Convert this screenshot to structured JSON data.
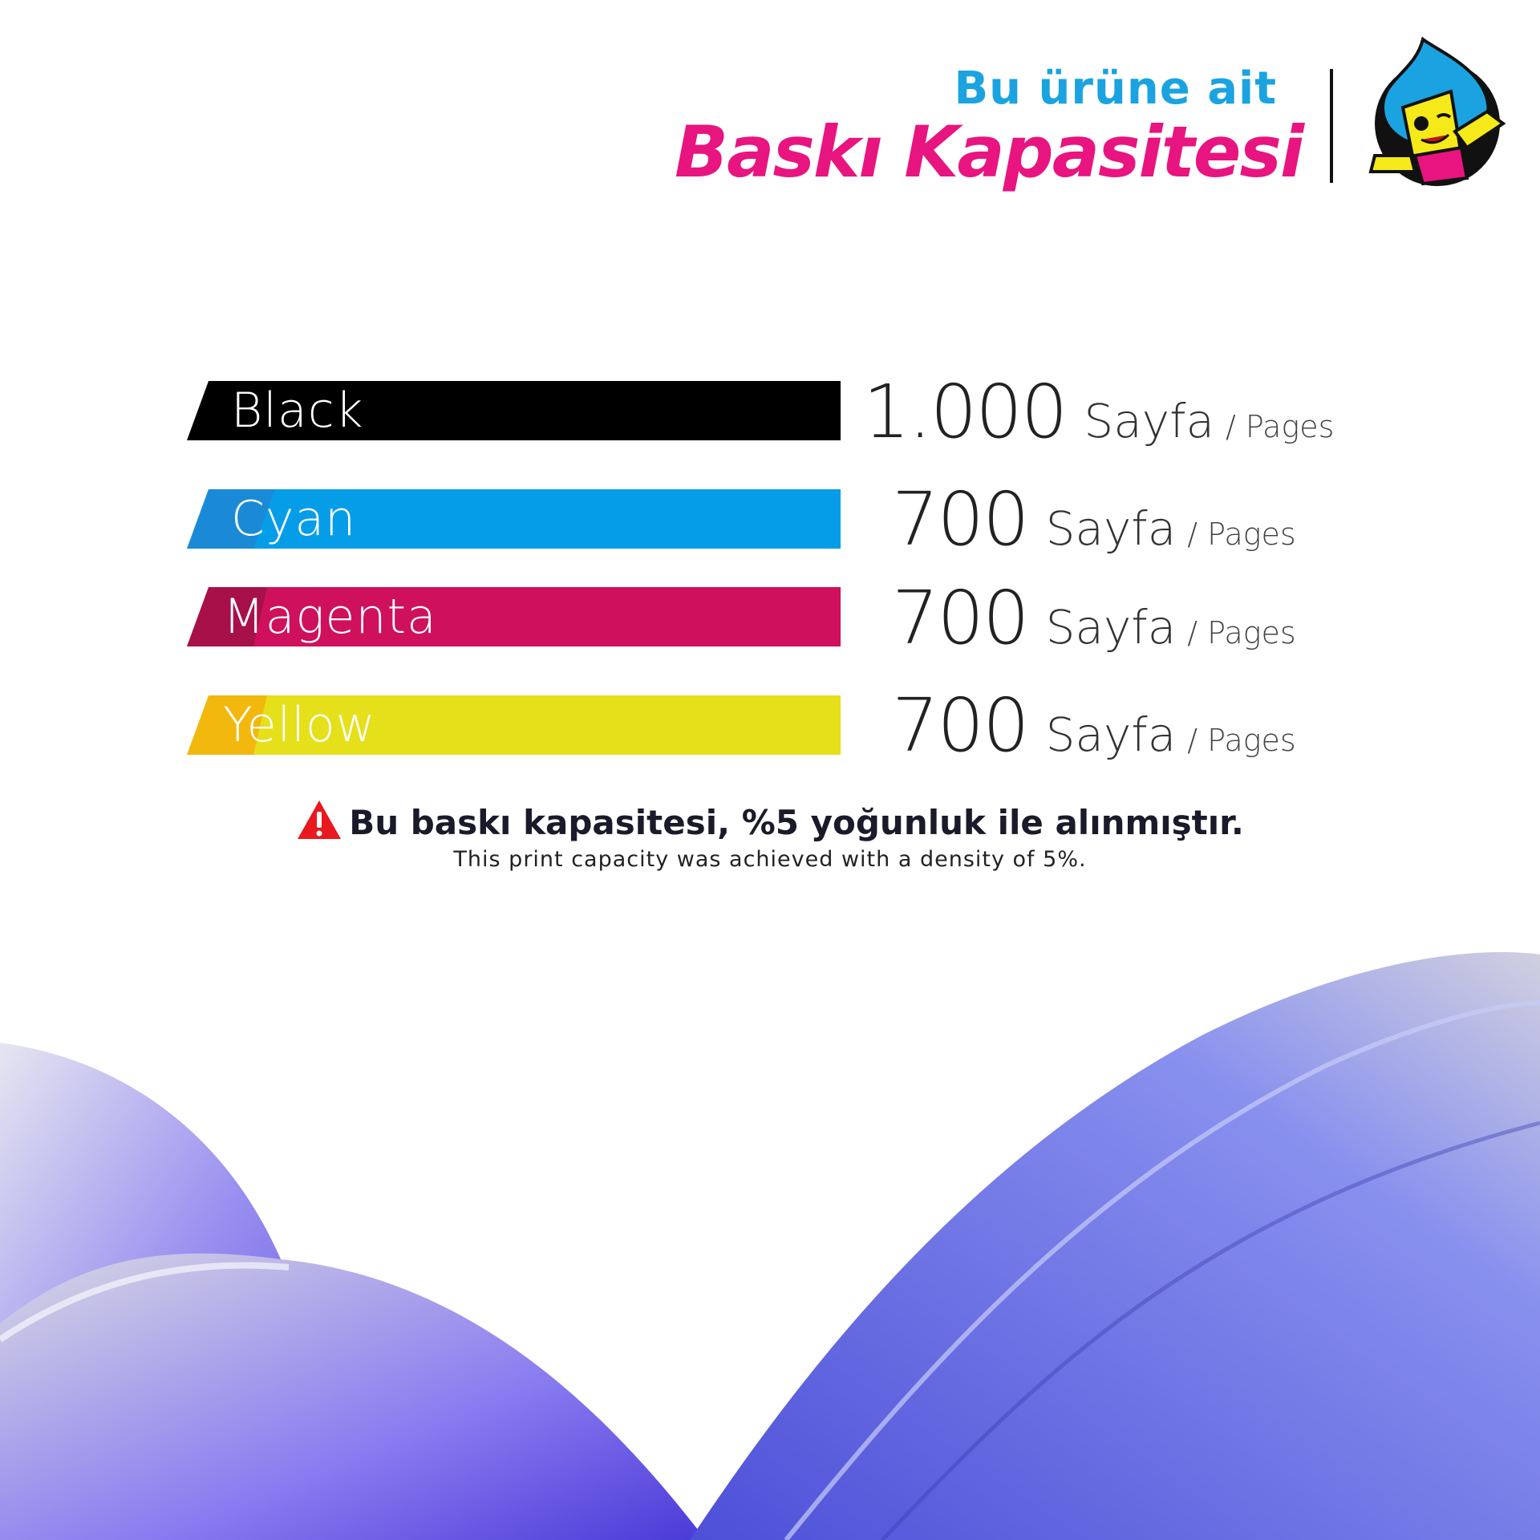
{
  "header": {
    "subtitle": "Bu ürüne ait",
    "title": "Baskı Kapasitesi",
    "logo": "mascot-logo"
  },
  "colors": {
    "black": "#000000",
    "cyan": "#069de8",
    "magenta": "#cf105d",
    "yellow": "#e5e01a",
    "title": "#e8147f",
    "subtitle": "#1aa3e0"
  },
  "capacities": [
    {
      "label": "Black",
      "value": "1.000",
      "unit": "Sayfa",
      "unit_en": "/ Pages"
    },
    {
      "label": "Cyan",
      "value": "700",
      "unit": "Sayfa",
      "unit_en": "/ Pages"
    },
    {
      "label": "Magenta",
      "value": "700",
      "unit": "Sayfa",
      "unit_en": "/ Pages"
    },
    {
      "label": "Yellow",
      "value": "700",
      "unit": "Sayfa",
      "unit_en": "/ Pages"
    }
  ],
  "notice": {
    "icon": "warning-icon",
    "text": "Bu baskı kapasitesi, %5 yoğunluk ile alınmıştır.",
    "subtext": "This print capacity was achieved with a density of 5%."
  }
}
